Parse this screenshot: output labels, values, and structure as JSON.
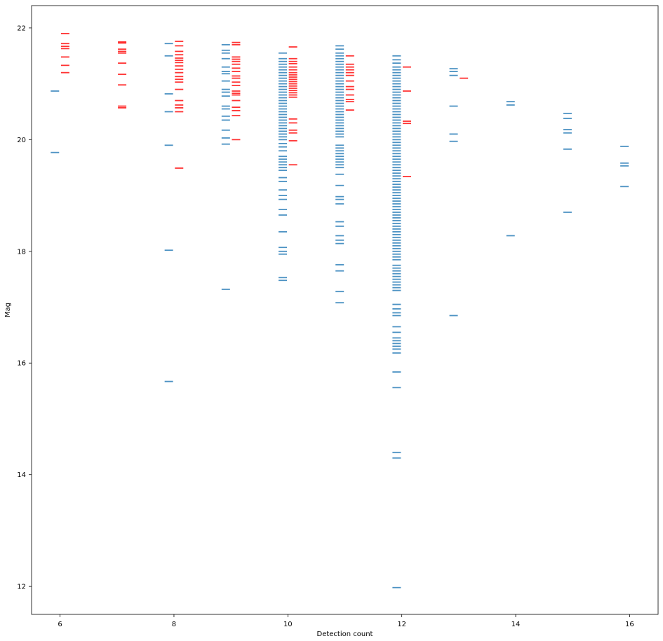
{
  "chart_data": {
    "type": "scatter",
    "marker": "horizontal-dash",
    "title": "",
    "xlabel": "Detection count",
    "ylabel": "Mag",
    "xlim": [
      5.5,
      16.5
    ],
    "ylim": [
      11.5,
      22.4
    ],
    "xticks": [
      6,
      8,
      10,
      12,
      14,
      16
    ],
    "yticks": [
      12,
      14,
      16,
      18,
      20,
      22
    ],
    "grid": false,
    "series": [
      {
        "color": "#1f77b4",
        "x_offset": -0.09,
        "points": [
          {
            "x": 6,
            "y": [
              20.87,
              19.77
            ]
          },
          {
            "x": 8,
            "y": [
              21.72,
              21.5,
              20.82,
              20.5,
              19.9,
              18.02,
              15.67
            ]
          },
          {
            "x": 9,
            "y": [
              21.7,
              21.6,
              21.55,
              21.45,
              21.3,
              21.22,
              21.18,
              21.05,
              20.9,
              20.85,
              20.78,
              20.6,
              20.55,
              20.42,
              20.35,
              20.17,
              20.03,
              19.92,
              17.32
            ]
          },
          {
            "x": 10,
            "y": [
              21.55,
              21.45,
              21.4,
              21.35,
              21.3,
              21.25,
              21.2,
              21.15,
              21.1,
              21.05,
              21.0,
              20.95,
              20.9,
              20.85,
              20.8,
              20.75,
              20.7,
              20.65,
              20.6,
              20.55,
              20.5,
              20.45,
              20.4,
              20.35,
              20.3,
              20.25,
              20.2,
              20.15,
              20.1,
              20.05,
              20.0,
              19.93,
              19.87,
              19.8,
              19.7,
              19.65,
              19.6,
              19.55,
              19.5,
              19.45,
              19.32,
              19.25,
              19.1,
              19.0,
              18.93,
              18.75,
              18.65,
              18.35,
              18.07,
              18.0,
              17.95,
              17.53,
              17.48
            ]
          },
          {
            "x": 11,
            "y": [
              21.68,
              21.62,
              21.55,
              21.5,
              21.45,
              21.4,
              21.35,
              21.3,
              21.25,
              21.2,
              21.15,
              21.1,
              21.05,
              21.0,
              20.95,
              20.9,
              20.85,
              20.8,
              20.75,
              20.7,
              20.65,
              20.6,
              20.55,
              20.5,
              20.45,
              20.4,
              20.35,
              20.3,
              20.25,
              20.2,
              20.15,
              20.1,
              20.05,
              19.9,
              19.85,
              19.8,
              19.75,
              19.7,
              19.65,
              19.6,
              19.55,
              19.5,
              19.38,
              19.18,
              18.98,
              18.93,
              18.85,
              18.53,
              18.45,
              18.28,
              18.2,
              18.14,
              17.76,
              17.65,
              17.28,
              17.08
            ]
          },
          {
            "x": 12,
            "y": [
              21.5,
              21.43,
              21.37,
              21.3,
              21.25,
              21.2,
              21.15,
              21.1,
              21.05,
              21.0,
              20.95,
              20.9,
              20.85,
              20.8,
              20.75,
              20.7,
              20.65,
              20.6,
              20.55,
              20.5,
              20.45,
              20.4,
              20.35,
              20.3,
              20.25,
              20.2,
              20.15,
              20.1,
              20.05,
              20.0,
              19.95,
              19.9,
              19.85,
              19.8,
              19.75,
              19.7,
              19.65,
              19.6,
              19.55,
              19.5,
              19.45,
              19.4,
              19.35,
              19.3,
              19.25,
              19.2,
              19.15,
              19.1,
              19.05,
              19.0,
              18.95,
              18.9,
              18.85,
              18.8,
              18.75,
              18.7,
              18.65,
              18.6,
              18.55,
              18.5,
              18.45,
              18.4,
              18.35,
              18.3,
              18.25,
              18.2,
              18.15,
              18.1,
              18.05,
              18.0,
              17.95,
              17.9,
              17.85,
              17.75,
              17.7,
              17.65,
              17.6,
              17.55,
              17.5,
              17.45,
              17.4,
              17.35,
              17.3,
              17.05,
              16.97,
              16.9,
              16.85,
              16.65,
              16.55,
              16.45,
              16.4,
              16.35,
              16.3,
              16.25,
              16.18,
              15.84,
              15.56,
              14.4,
              14.3,
              11.98
            ]
          },
          {
            "x": 13,
            "y": [
              21.27,
              21.22,
              21.15,
              20.6,
              20.1,
              19.97,
              16.85
            ]
          },
          {
            "x": 14,
            "y": [
              20.68,
              20.62,
              18.28
            ]
          },
          {
            "x": 15,
            "y": [
              20.47,
              20.38,
              20.18,
              20.12,
              19.83,
              18.7
            ]
          },
          {
            "x": 16,
            "y": [
              19.88,
              19.58,
              19.53,
              19.16
            ]
          }
        ]
      },
      {
        "color": "#ff0000",
        "x_offset": 0.09,
        "points": [
          {
            "x": 6,
            "y": [
              21.9,
              21.72,
              21.67,
              21.63,
              21.48,
              21.33,
              21.2
            ]
          },
          {
            "x": 7,
            "y": [
              21.75,
              21.73,
              21.62,
              21.58,
              21.55,
              21.37,
              21.17,
              20.98,
              20.6,
              20.57
            ]
          },
          {
            "x": 8,
            "y": [
              21.76,
              21.68,
              21.58,
              21.52,
              21.46,
              21.42,
              21.38,
              21.32,
              21.26,
              21.2,
              21.13,
              21.08,
              21.03,
              20.9,
              20.7,
              20.62,
              20.57,
              20.5,
              19.49
            ]
          },
          {
            "x": 9,
            "y": [
              21.74,
              21.7,
              21.48,
              21.44,
              21.4,
              21.35,
              21.28,
              21.22,
              21.14,
              21.1,
              21.03,
              20.97,
              20.87,
              20.83,
              20.8,
              20.7,
              20.58,
              20.52,
              20.43,
              20.0
            ]
          },
          {
            "x": 10,
            "y": [
              21.66,
              21.45,
              21.4,
              21.36,
              21.3,
              21.25,
              21.2,
              21.16,
              21.12,
              21.08,
              21.04,
              21.0,
              20.96,
              20.92,
              20.88,
              20.84,
              20.8,
              20.76,
              20.37,
              20.3,
              20.17,
              20.12,
              19.98,
              19.55
            ]
          },
          {
            "x": 11,
            "y": [
              21.5,
              21.35,
              21.3,
              21.25,
              21.2,
              21.15,
              21.05,
              20.95,
              20.9,
              20.8,
              20.72,
              20.68,
              20.53
            ]
          },
          {
            "x": 12,
            "y": [
              21.3,
              20.87,
              20.33,
              20.29,
              19.34
            ]
          },
          {
            "x": 13,
            "y": [
              21.1
            ]
          }
        ]
      }
    ]
  }
}
